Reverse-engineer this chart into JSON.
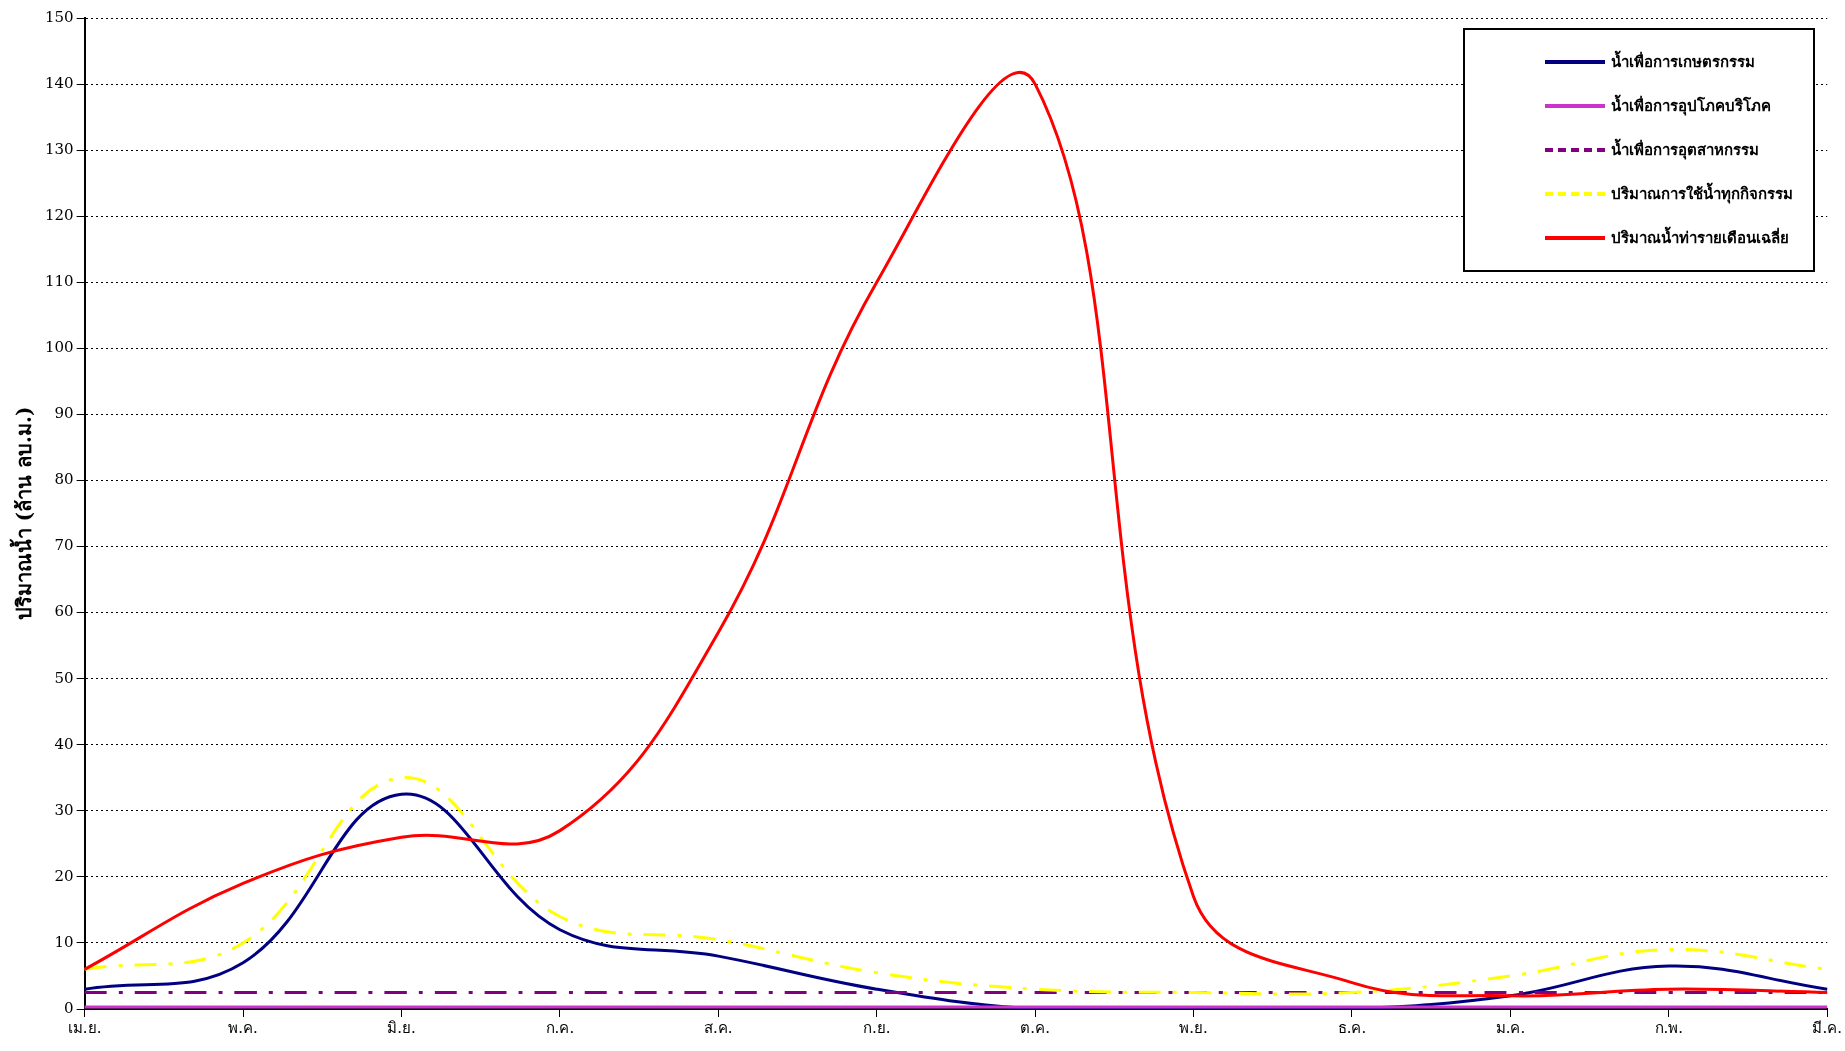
{
  "chart_data": {
    "type": "line",
    "ylabel": "ปริมาณน้ำ (ล้าน ลบ.ม.)",
    "categories": [
      "เม.ย.",
      "พ.ค.",
      "มิ.ย.",
      "ก.ค.",
      "ส.ค.",
      "ก.ย.",
      "ต.ค.",
      "พ.ย.",
      "ธ.ค.",
      "ม.ค.",
      "ก.พ.",
      "มี.ค."
    ],
    "series": [
      {
        "name": "น้ำเพื่อการเกษตรกรรม",
        "color": "#000080",
        "line_style": "solid",
        "values": [
          3,
          7,
          32.5,
          12,
          8,
          3,
          0,
          0,
          0,
          2,
          6.5,
          3
        ]
      },
      {
        "name": "น้ำเพื่อการอุปโภคบริโภค",
        "color": "#cc33cc",
        "line_style": "solid",
        "values": [
          0.3,
          0.3,
          0.3,
          0.3,
          0.3,
          0.3,
          0.3,
          0.3,
          0.3,
          0.3,
          0.3,
          0.3
        ]
      },
      {
        "name": "น้ำเพื่อการอุตสาหกรรม",
        "color": "#800080",
        "line_style": "dashed",
        "values": [
          2.5,
          2.5,
          2.5,
          2.5,
          2.5,
          2.5,
          2.5,
          2.5,
          2.5,
          2.5,
          2.5,
          2.5
        ]
      },
      {
        "name": "ปริมาณการใช้น้ำทุกกิจกรรม",
        "color": "#ffff00",
        "line_style": "dashed",
        "values": [
          6,
          10,
          35,
          14,
          10.5,
          5.5,
          3,
          2.5,
          2.5,
          5,
          9,
          6
        ]
      },
      {
        "name": "ปริมาณน้ำท่ารายเดือนเฉลี่ย",
        "color": "#ff0000",
        "line_style": "solid",
        "values": [
          6,
          19,
          26,
          27,
          57,
          110,
          140,
          17,
          4,
          2,
          3,
          2.5
        ]
      }
    ],
    "ylim": [
      0,
      150
    ],
    "yticks": [
      0,
      10,
      20,
      30,
      40,
      50,
      60,
      70,
      80,
      90,
      100,
      110,
      120,
      130,
      140,
      150
    ],
    "grid": "y",
    "legend": "top right",
    "marker": "none"
  }
}
